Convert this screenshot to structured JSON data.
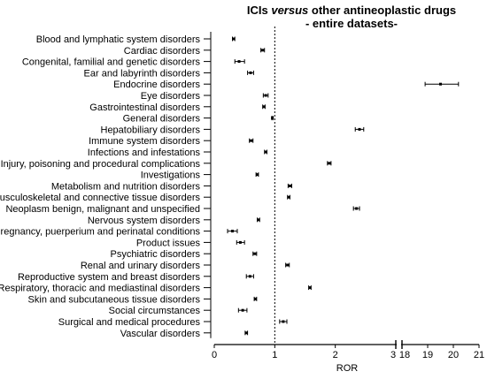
{
  "chart_data": {
    "type": "scatter",
    "subtype": "forest-plot",
    "title_prefix": "ICIs ",
    "title_emphasis": "versus",
    "title_suffix": " other antineoplastic drugs",
    "subtitle": "- entire datasets-",
    "xlabel": "ROR",
    "reference_line": 1,
    "x_segments": [
      {
        "range": [
          0,
          3
        ],
        "ticks": [
          "0",
          "1",
          "2",
          "3"
        ]
      },
      {
        "range": [
          18,
          21
        ],
        "ticks": [
          "18",
          "19",
          "20",
          "21"
        ]
      }
    ],
    "categories": [
      "Blood and lymphatic system disorders",
      "Cardiac disorders",
      "Congenital, familial and genetic disorders",
      "Ear and labyrinth disorders",
      "Endocrine disorders",
      "Eye disorders",
      "Gastrointestinal disorders",
      "General disorders",
      "Hepatobiliary disorders",
      "Immune system disorders",
      "Infections and infestations",
      "Injury, poisoning and procedural complications",
      "Investigations",
      "Metabolism and nutrition disorders",
      "Musculoskeletal and connective tissue disorders",
      "Neoplasm benign, malignant and unspecified",
      "Nervous system disorders",
      "Pregnancy, puerperium and perinatal conditions",
      "Product issues",
      "Psychiatric disorders",
      "Renal and urinary disorders",
      "Reproductive system and breast disorders",
      "Respiratory, thoracic and mediastinal disorders",
      "Skin and subcutaneous tissue disorders",
      "Social circumstances",
      "Surgical and medical procedures",
      "Vascular disorders"
    ],
    "points": [
      {
        "ror": 0.32,
        "lower": 0.3,
        "upper": 0.34
      },
      {
        "ror": 0.8,
        "lower": 0.77,
        "upper": 0.83
      },
      {
        "ror": 0.41,
        "lower": 0.34,
        "upper": 0.5
      },
      {
        "ror": 0.6,
        "lower": 0.55,
        "upper": 0.65
      },
      {
        "ror": 19.5,
        "lower": 18.9,
        "upper": 20.2
      },
      {
        "ror": 0.85,
        "lower": 0.81,
        "upper": 0.89
      },
      {
        "ror": 0.82,
        "lower": 0.8,
        "upper": 0.84
      },
      {
        "ror": 0.96,
        "lower": 0.95,
        "upper": 0.97
      },
      {
        "ror": 2.4,
        "lower": 2.33,
        "upper": 2.47
      },
      {
        "ror": 0.61,
        "lower": 0.58,
        "upper": 0.64
      },
      {
        "ror": 0.85,
        "lower": 0.83,
        "upper": 0.87
      },
      {
        "ror": 1.9,
        "lower": 1.87,
        "upper": 1.93
      },
      {
        "ror": 0.71,
        "lower": 0.69,
        "upper": 0.73
      },
      {
        "ror": 1.25,
        "lower": 1.22,
        "upper": 1.28
      },
      {
        "ror": 1.23,
        "lower": 1.21,
        "upper": 1.25
      },
      {
        "ror": 2.35,
        "lower": 2.3,
        "upper": 2.4
      },
      {
        "ror": 0.73,
        "lower": 0.71,
        "upper": 0.75
      },
      {
        "ror": 0.3,
        "lower": 0.22,
        "upper": 0.38
      },
      {
        "ror": 0.43,
        "lower": 0.37,
        "upper": 0.5
      },
      {
        "ror": 0.67,
        "lower": 0.64,
        "upper": 0.7
      },
      {
        "ror": 1.21,
        "lower": 1.18,
        "upper": 1.24
      },
      {
        "ror": 0.59,
        "lower": 0.53,
        "upper": 0.65
      },
      {
        "ror": 1.58,
        "lower": 1.56,
        "upper": 1.6
      },
      {
        "ror": 0.68,
        "lower": 0.66,
        "upper": 0.7
      },
      {
        "ror": 0.47,
        "lower": 0.4,
        "upper": 0.54
      },
      {
        "ror": 1.14,
        "lower": 1.08,
        "upper": 1.2
      },
      {
        "ror": 0.53,
        "lower": 0.51,
        "upper": 0.55
      }
    ]
  },
  "colors": {
    "marker": "#000000",
    "axis": "#000000",
    "reference_line": "#000000"
  }
}
